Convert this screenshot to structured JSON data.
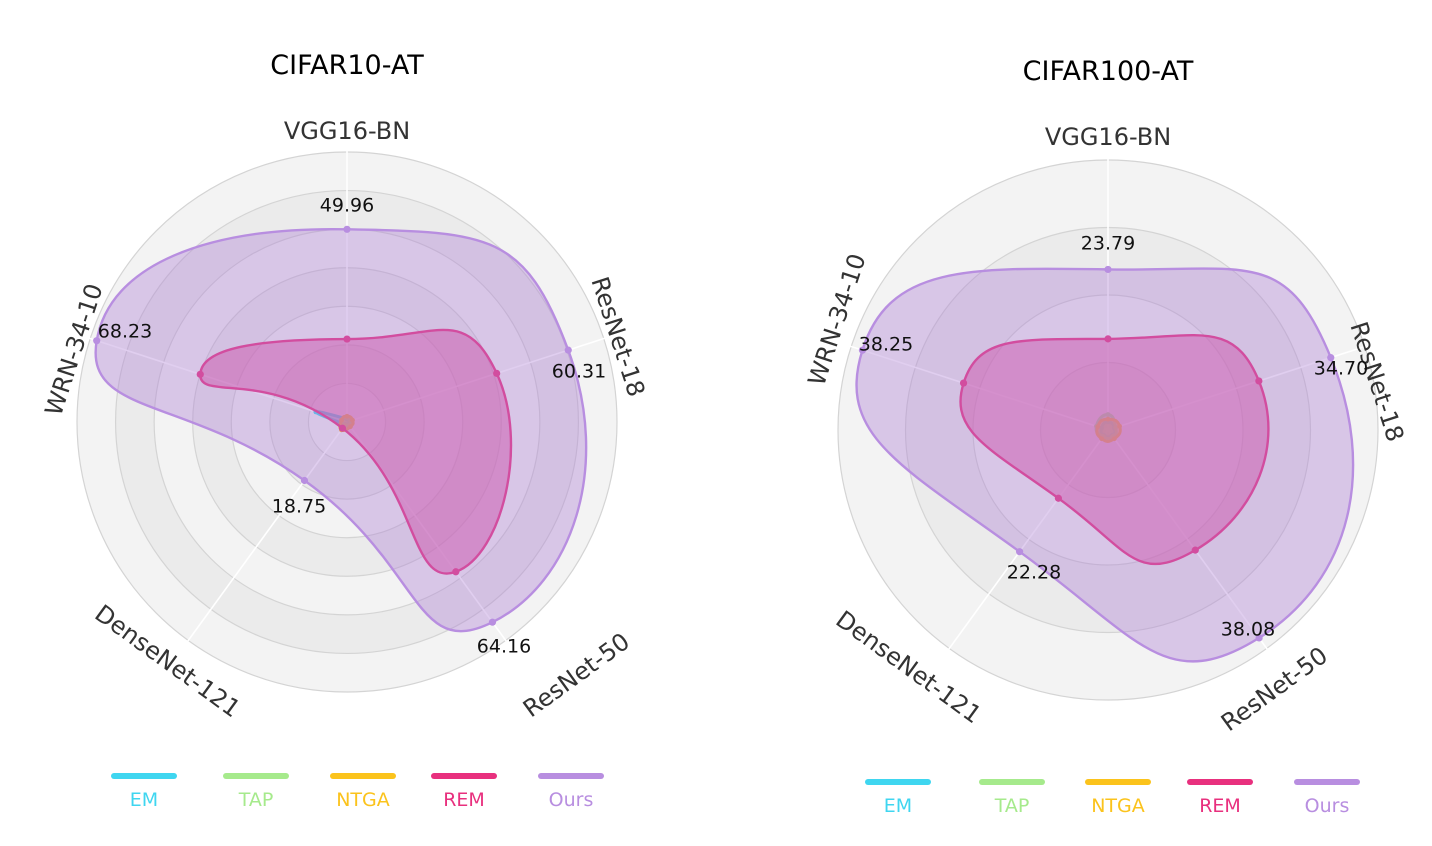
{
  "colors": {
    "EM": "#3fd6f0",
    "TAP": "#a6ea8c",
    "NTGA": "#fbc31c",
    "REM": "#e8307e",
    "Ours": "#b88ee0",
    "ours_fill": "#ad7fd6",
    "rem_fill": "#e04a9a"
  },
  "chart_data": [
    {
      "type": "radar",
      "title": "CIFAR10-AT",
      "axes": [
        "VGG16-BN",
        "ResNet-18",
        "ResNet-50",
        "DenseNet-121",
        "WRN-34-10"
      ],
      "rmax": 70,
      "grid_levels": [
        10,
        20,
        30,
        40,
        50,
        60,
        70
      ],
      "series": [
        {
          "name": "EM",
          "values": [
            0.8,
            0.8,
            0.8,
            0.8,
            8.5
          ]
        },
        {
          "name": "TAP",
          "values": [
            1.2,
            1.0,
            1.0,
            1.0,
            1.5
          ]
        },
        {
          "name": "NTGA",
          "values": [
            1.5,
            1.5,
            1.5,
            2.5,
            1.5
          ]
        },
        {
          "name": "REM",
          "values": [
            21.5,
            40.8,
            48.0,
            2.0,
            40.0
          ]
        },
        {
          "name": "Ours",
          "values": [
            49.96,
            60.31,
            64.16,
            18.75,
            68.23
          ]
        }
      ],
      "value_labels": [
        "49.96",
        "60.31",
        "64.16",
        "18.75",
        "68.23"
      ],
      "legend": [
        "EM",
        "TAP",
        "NTGA",
        "REM",
        "Ours"
      ]
    },
    {
      "type": "radar",
      "title": "CIFAR100-AT",
      "axes": [
        "VGG16-BN",
        "ResNet-18",
        "ResNet-50",
        "DenseNet-121",
        "WRN-34-10"
      ],
      "rmax": 40,
      "grid_levels": [
        10,
        20,
        30,
        40
      ],
      "series": [
        {
          "name": "EM",
          "values": [
            1.2,
            1.0,
            1.0,
            1.0,
            1.0
          ]
        },
        {
          "name": "TAP",
          "values": [
            2.3,
            1.2,
            1.2,
            1.2,
            1.8
          ]
        },
        {
          "name": "NTGA",
          "values": [
            1.6,
            1.8,
            1.6,
            1.6,
            1.6
          ]
        },
        {
          "name": "REM",
          "values": [
            13.5,
            23.5,
            22.0,
            12.5,
            22.5
          ]
        },
        {
          "name": "Ours",
          "values": [
            23.79,
            34.7,
            38.08,
            22.28,
            38.25
          ]
        }
      ],
      "value_labels": [
        "23.79",
        "34.70",
        "38.08",
        "22.28",
        "38.25"
      ],
      "legend": [
        "EM",
        "TAP",
        "NTGA",
        "REM",
        "Ours"
      ]
    }
  ]
}
